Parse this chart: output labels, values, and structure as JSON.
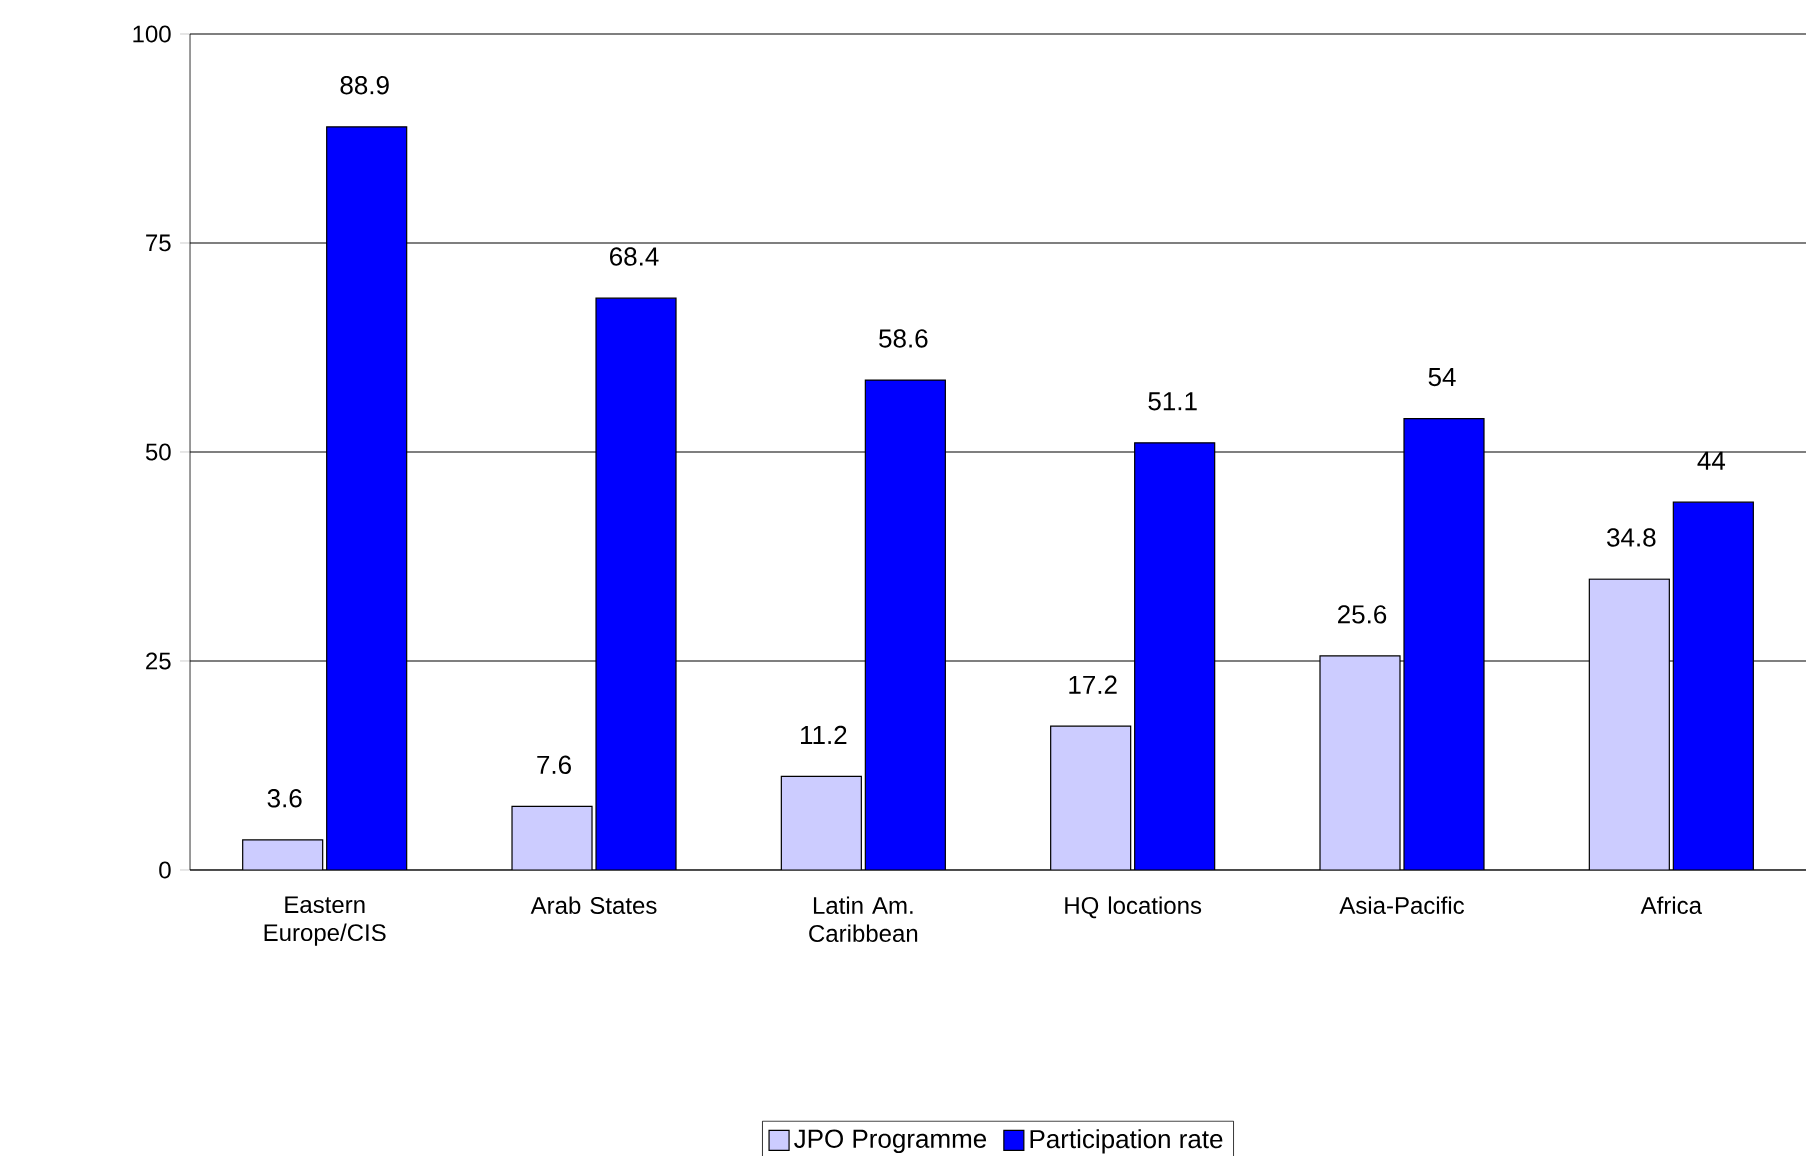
{
  "chart_data": {
    "type": "bar",
    "categories": [
      "Eastern Europe/CIS",
      "Arab States",
      "Latin Am. Caribbean",
      "HQ locations",
      "Asia-Pacific",
      "Africa"
    ],
    "series": [
      {
        "name": "JPO Programme",
        "color": "#ccccff",
        "values": [
          3.6,
          7.6,
          11.2,
          17.2,
          25.6,
          34.8
        ]
      },
      {
        "name": "Participation rate",
        "color": "#0000ff",
        "values": [
          88.9,
          68.4,
          58.6,
          51.1,
          54,
          44
        ]
      }
    ],
    "ylim": [
      0,
      100
    ],
    "yticks": [
      0,
      25,
      50,
      75,
      100
    ],
    "grid": "y",
    "legend": "bottom",
    "data_labels": true
  }
}
